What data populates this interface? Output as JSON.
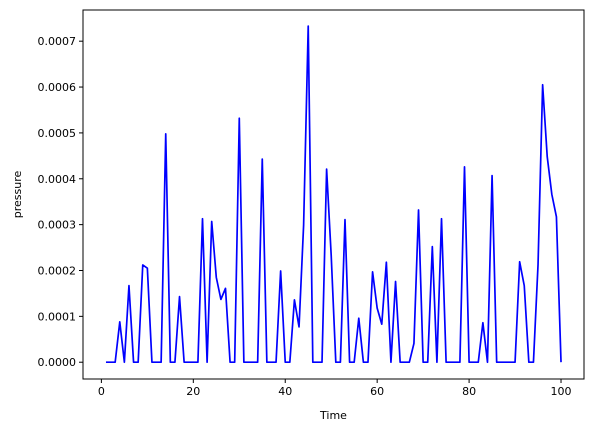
{
  "chart_data": {
    "type": "line",
    "title": "",
    "xlabel": "Time",
    "ylabel": "pressure",
    "xlim": [
      -4,
      105
    ],
    "ylim": [
      -3.66e-05,
      0.000768
    ],
    "xticks": [
      0,
      20,
      40,
      60,
      80,
      100
    ],
    "xtick_labels": [
      "0",
      "20",
      "40",
      "60",
      "80",
      "100"
    ],
    "yticks": [
      0,
      0.0001,
      0.0002,
      0.0003,
      0.0004,
      0.0005,
      0.0006,
      0.0007
    ],
    "ytick_labels": [
      "0.0000",
      "0.0001",
      "0.0002",
      "0.0003",
      "0.0004",
      "0.0005",
      "0.0006",
      "0.0007"
    ],
    "grid": false,
    "legend": "none",
    "series": [
      {
        "color": "#0000ff",
        "x": [
          1,
          2,
          3,
          4,
          5,
          6,
          7,
          8,
          9,
          10,
          11,
          12,
          13,
          14,
          15,
          16,
          17,
          18,
          19,
          20,
          21,
          22,
          23,
          24,
          25,
          26,
          27,
          28,
          29,
          30,
          31,
          32,
          33,
          34,
          35,
          36,
          37,
          38,
          39,
          40,
          41,
          42,
          43,
          44,
          45,
          46,
          47,
          48,
          49,
          50,
          51,
          52,
          53,
          54,
          55,
          56,
          57,
          58,
          59,
          60,
          61,
          62,
          63,
          64,
          65,
          66,
          67,
          68,
          69,
          70,
          71,
          72,
          73,
          74,
          75,
          76,
          77,
          78,
          79,
          80,
          81,
          82,
          83,
          84,
          85,
          86,
          87,
          88,
          89,
          90,
          91,
          92,
          93,
          94,
          95,
          96,
          97,
          98,
          99,
          100
        ],
        "y": [
          0,
          0,
          0,
          8.8e-05,
          0,
          0.000167,
          0,
          0,
          0.000212,
          0.000205,
          0,
          0,
          0,
          0.000498,
          0,
          0,
          0.000143,
          0,
          0,
          0,
          0,
          0.000313,
          0,
          0.000307,
          0.000185,
          0.000137,
          0.000161,
          0,
          0,
          0.000532,
          0,
          0,
          0,
          0,
          0.000443,
          0,
          0,
          0,
          0.000199,
          0,
          0,
          0.000136,
          7.7e-05,
          0.000299,
          0.000733,
          0,
          0,
          0,
          0.000421,
          0.000233,
          0,
          0,
          0.000311,
          0,
          0,
          9.6e-05,
          0,
          0,
          0.000197,
          0.000118,
          8.3e-05,
          0.000218,
          0,
          0.000176,
          0,
          0,
          0,
          4.1e-05,
          0.000332,
          0,
          0,
          0.000252,
          0,
          0.000313,
          0,
          0,
          0,
          0,
          0.000426,
          0,
          0,
          0,
          8.6e-05,
          0,
          0.000407,
          0,
          0,
          0,
          0,
          0,
          0.000219,
          0.000167,
          0,
          0,
          0.000213,
          0.000605,
          0.000448,
          0.000366,
          0.000317,
          0
        ]
      }
    ]
  }
}
